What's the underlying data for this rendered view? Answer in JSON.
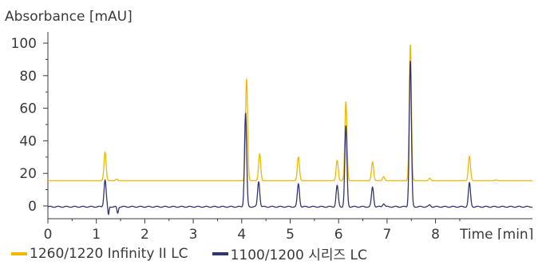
{
  "chart_data": {
    "type": "line",
    "ylabel": "Absorbance [mAU]",
    "xlabel": "Time [min]",
    "xlim": [
      0,
      10
    ],
    "ylim": [
      -7,
      100
    ],
    "xticks": [
      0,
      1,
      2,
      3,
      4,
      5,
      6,
      7,
      8
    ],
    "yticks": [
      0,
      20,
      40,
      60,
      80,
      100
    ],
    "legend_position": "bottom",
    "series": [
      {
        "name": "1260/1220 Infinity II LC",
        "color": "#f2b800",
        "baseline": 15.5,
        "peaks": [
          {
            "t": 1.18,
            "height": 33
          },
          {
            "t": 1.42,
            "height": 16.5
          },
          {
            "t": 4.1,
            "height": 78
          },
          {
            "t": 4.37,
            "height": 32
          },
          {
            "t": 5.17,
            "height": 30
          },
          {
            "t": 5.97,
            "height": 28
          },
          {
            "t": 6.15,
            "height": 64
          },
          {
            "t": 6.7,
            "height": 27
          },
          {
            "t": 6.93,
            "height": 18
          },
          {
            "t": 7.48,
            "height": 99
          },
          {
            "t": 7.88,
            "height": 17
          },
          {
            "t": 8.7,
            "height": 30.5
          },
          {
            "t": 9.25,
            "height": 16
          }
        ]
      },
      {
        "name": "1100/1200 시리즈 LC",
        "color": "#33356e",
        "baseline": -0.5,
        "peaks": [
          {
            "t": 1.18,
            "height": 16
          },
          {
            "t": 4.08,
            "height": 57
          },
          {
            "t": 4.35,
            "height": 15
          },
          {
            "t": 5.17,
            "height": 13.5
          },
          {
            "t": 5.97,
            "height": 12.5
          },
          {
            "t": 6.15,
            "height": 49
          },
          {
            "t": 6.7,
            "height": 11.5
          },
          {
            "t": 6.93,
            "height": 1.5
          },
          {
            "t": 7.48,
            "height": 89
          },
          {
            "t": 7.88,
            "height": 0.5
          },
          {
            "t": 8.7,
            "height": 14
          }
        ]
      }
    ]
  }
}
